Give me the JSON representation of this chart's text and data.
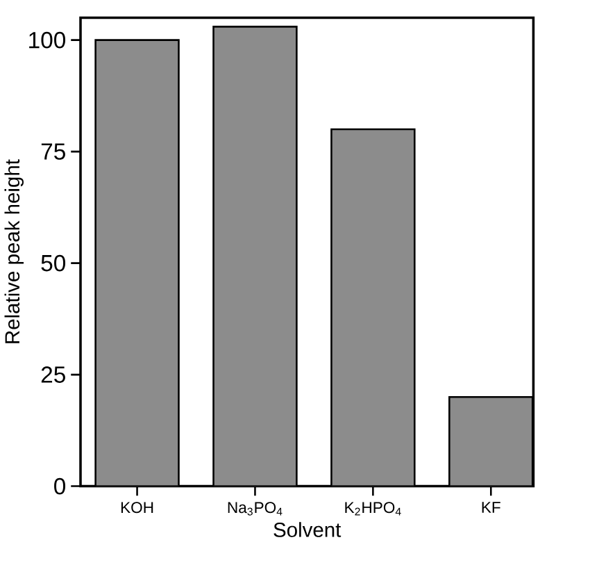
{
  "chart_data": {
    "type": "bar",
    "xlabel": "Solvent",
    "ylabel": "Relative peak height",
    "categories": [
      "KOH",
      "Na$_{3}$PO$_{4}$",
      "K$_{2}$HPO$_{4}$",
      "KF"
    ],
    "values": [
      100,
      103,
      80,
      20
    ],
    "color": "#8c8c8c",
    "ylim": [
      0,
      105
    ],
    "yticks": [
      0,
      25,
      50,
      75,
      100
    ]
  }
}
